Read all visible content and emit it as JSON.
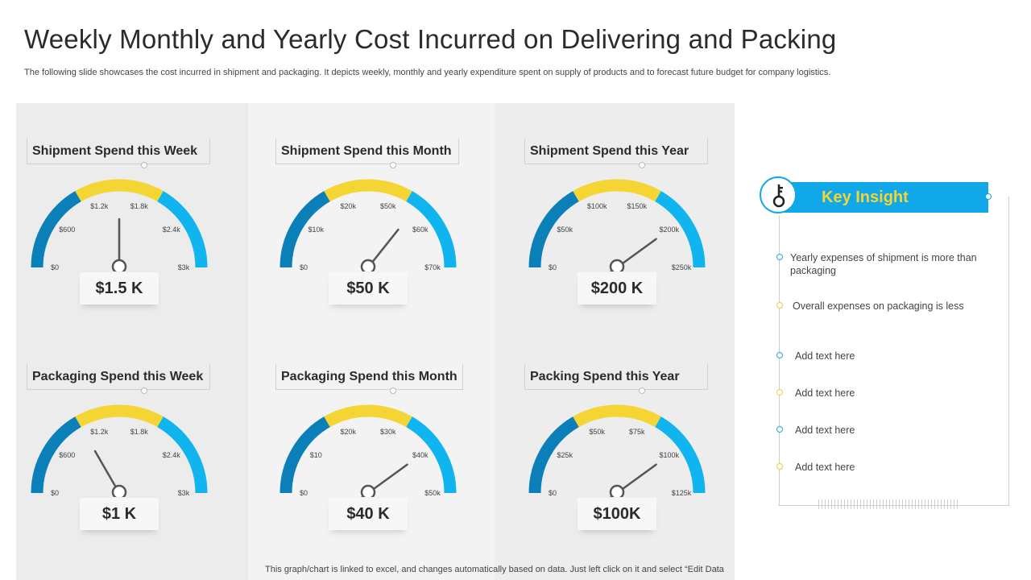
{
  "title": "Weekly Monthly and Yearly Cost Incurred on Delivering  and Packing",
  "subtitle": "The following slide showcases the cost incurred in shipment and packaging. It depicts weekly, monthly and yearly  expenditure spent on supply of products and to forecast future budget for company logistics.",
  "footer": "This graph/chart is linked to excel,  and changes automatically based on data. Just left click on it and select “Edit Data",
  "colors": {
    "dark_blue": "#0a7fb8",
    "yellow": "#f5d533",
    "light_blue": "#10b5ef",
    "accent": "#10a8e8"
  },
  "chart_data": [
    {
      "type": "gauge",
      "title": "Shipment Spend this Week",
      "value_label": "$1.5 K",
      "value": 1.5,
      "max": 3,
      "ticks": [
        "$0",
        "$600",
        "$1.2k",
        "$1.8k",
        "$2.4k",
        "$3k"
      ]
    },
    {
      "type": "gauge",
      "title": "Shipment Spend this Month",
      "value_label": "$50 K",
      "value": 50,
      "max": 70,
      "ticks": [
        "$0",
        "$10k",
        "$20k",
        "$50k",
        "$60k",
        "$70k"
      ]
    },
    {
      "type": "gauge",
      "title": "Shipment Spend this Year",
      "value_label": "$200 K",
      "value": 200,
      "max": 250,
      "ticks": [
        "$0",
        "$50k",
        "$100k",
        "$150k",
        "$200k",
        "$250k"
      ]
    },
    {
      "type": "gauge",
      "title": "Packaging Spend this Week",
      "value_label": "$1 K",
      "value": 1,
      "max": 3,
      "ticks": [
        "$0",
        "$600",
        "$1.2k",
        "$1.8k",
        "$2.4k",
        "$3k"
      ]
    },
    {
      "type": "gauge",
      "title": "Packaging Spend this Month",
      "value_label": "$40 K",
      "value": 40,
      "max": 50,
      "ticks": [
        "$0",
        "$10",
        "$20k",
        "$30k",
        "$40k",
        "$50k"
      ]
    },
    {
      "type": "gauge",
      "title": "Packing Spend this Year",
      "value_label": "$100K",
      "value": 100,
      "max": 125,
      "ticks": [
        "$0",
        "$25k",
        "$50k",
        "$75k",
        "$100k",
        "$125k"
      ]
    }
  ],
  "insight": {
    "title": "Key Insight",
    "icon": "key-icon",
    "items": [
      {
        "text": "Yearly expenses of shipment is more than packaging",
        "bullet": "blue"
      },
      {
        "text": "Overall  expenses on packaging is less",
        "bullet": "yellow"
      },
      {
        "text": "Add text here",
        "bullet": "blue"
      },
      {
        "text": "Add text here",
        "bullet": "yellow"
      },
      {
        "text": "Add text here",
        "bullet": "blue"
      },
      {
        "text": "Add text here",
        "bullet": "yellow"
      }
    ]
  }
}
